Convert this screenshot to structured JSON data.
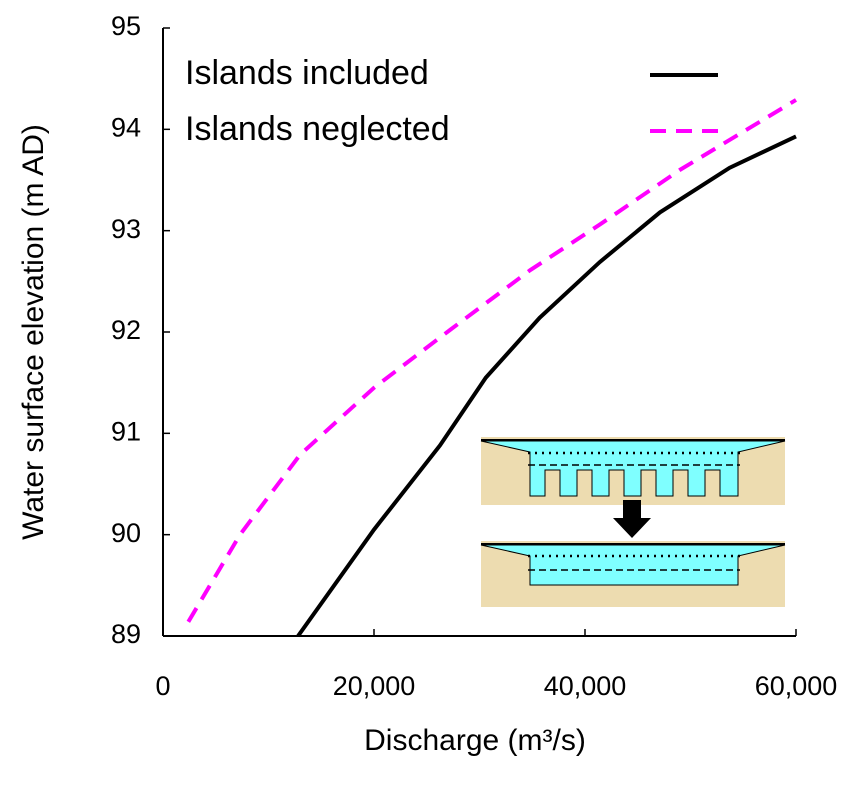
{
  "chart_data": {
    "type": "line",
    "xlabel": "Discharge (m³/s)",
    "ylabel": "Water surface elevation (m AD)",
    "xlim": [
      0,
      60000
    ],
    "xticks": [
      0,
      {
        "value": 20000,
        "label": "20,000"
      },
      {
        "value": 40000,
        "label": "40,000"
      },
      {
        "value": 60000,
        "label": "60,000"
      }
    ],
    "ylim": [
      89,
      95
    ],
    "yticks": [
      89,
      90,
      91,
      92,
      93,
      94,
      95
    ],
    "legend": "upper left",
    "series": [
      {
        "name": "Islands included",
        "color": "#000000",
        "dash": "solid",
        "x": [
          12800,
          20000,
          26250,
          30600,
          35700,
          41400,
          47100,
          53700,
          60000
        ],
        "values": [
          89.0,
          90.05,
          90.88,
          91.55,
          92.14,
          92.69,
          93.18,
          93.62,
          93.93
        ]
      },
      {
        "name": "Islands neglected",
        "color": "#ff00ff",
        "dash": "dashed",
        "x": [
          2400,
          7300,
          13000,
          20000,
          27200,
          34800,
          41400,
          49000,
          60000
        ],
        "values": [
          89.14,
          90.0,
          90.79,
          91.45,
          92.02,
          92.61,
          93.06,
          93.6,
          94.29
        ]
      }
    ]
  }
}
